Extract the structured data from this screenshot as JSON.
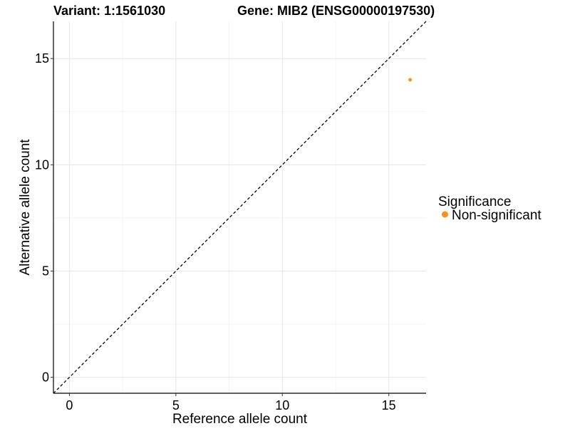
{
  "chart_data": {
    "type": "scatter",
    "title_left": "Variant: 1:1561030",
    "title_right": "Gene: MIB2 (ENSG00000197530)",
    "xlabel": "Reference allele count",
    "ylabel": "Alternative allele count",
    "xlim": [
      -0.75,
      16.75
    ],
    "ylim": [
      -0.75,
      16.75
    ],
    "x_ticks": [
      0,
      5,
      10,
      15
    ],
    "y_ticks": [
      0,
      5,
      10,
      15
    ],
    "x_minor_grid": [
      2.5,
      7.5,
      12.5
    ],
    "y_minor_grid": [
      2.5,
      7.5,
      12.5
    ],
    "grid": true,
    "reference_line": {
      "slope": 1,
      "intercept": 0,
      "style": "dashed",
      "color": "#000000"
    },
    "legend": {
      "title": "Significance",
      "position": "right",
      "entries": [
        {
          "label": "Non-significant",
          "color": "#F7941D"
        }
      ]
    },
    "series": [
      {
        "name": "Non-significant",
        "color": "#F7941D",
        "points": [
          {
            "x": 16,
            "y": 14
          }
        ]
      }
    ]
  }
}
